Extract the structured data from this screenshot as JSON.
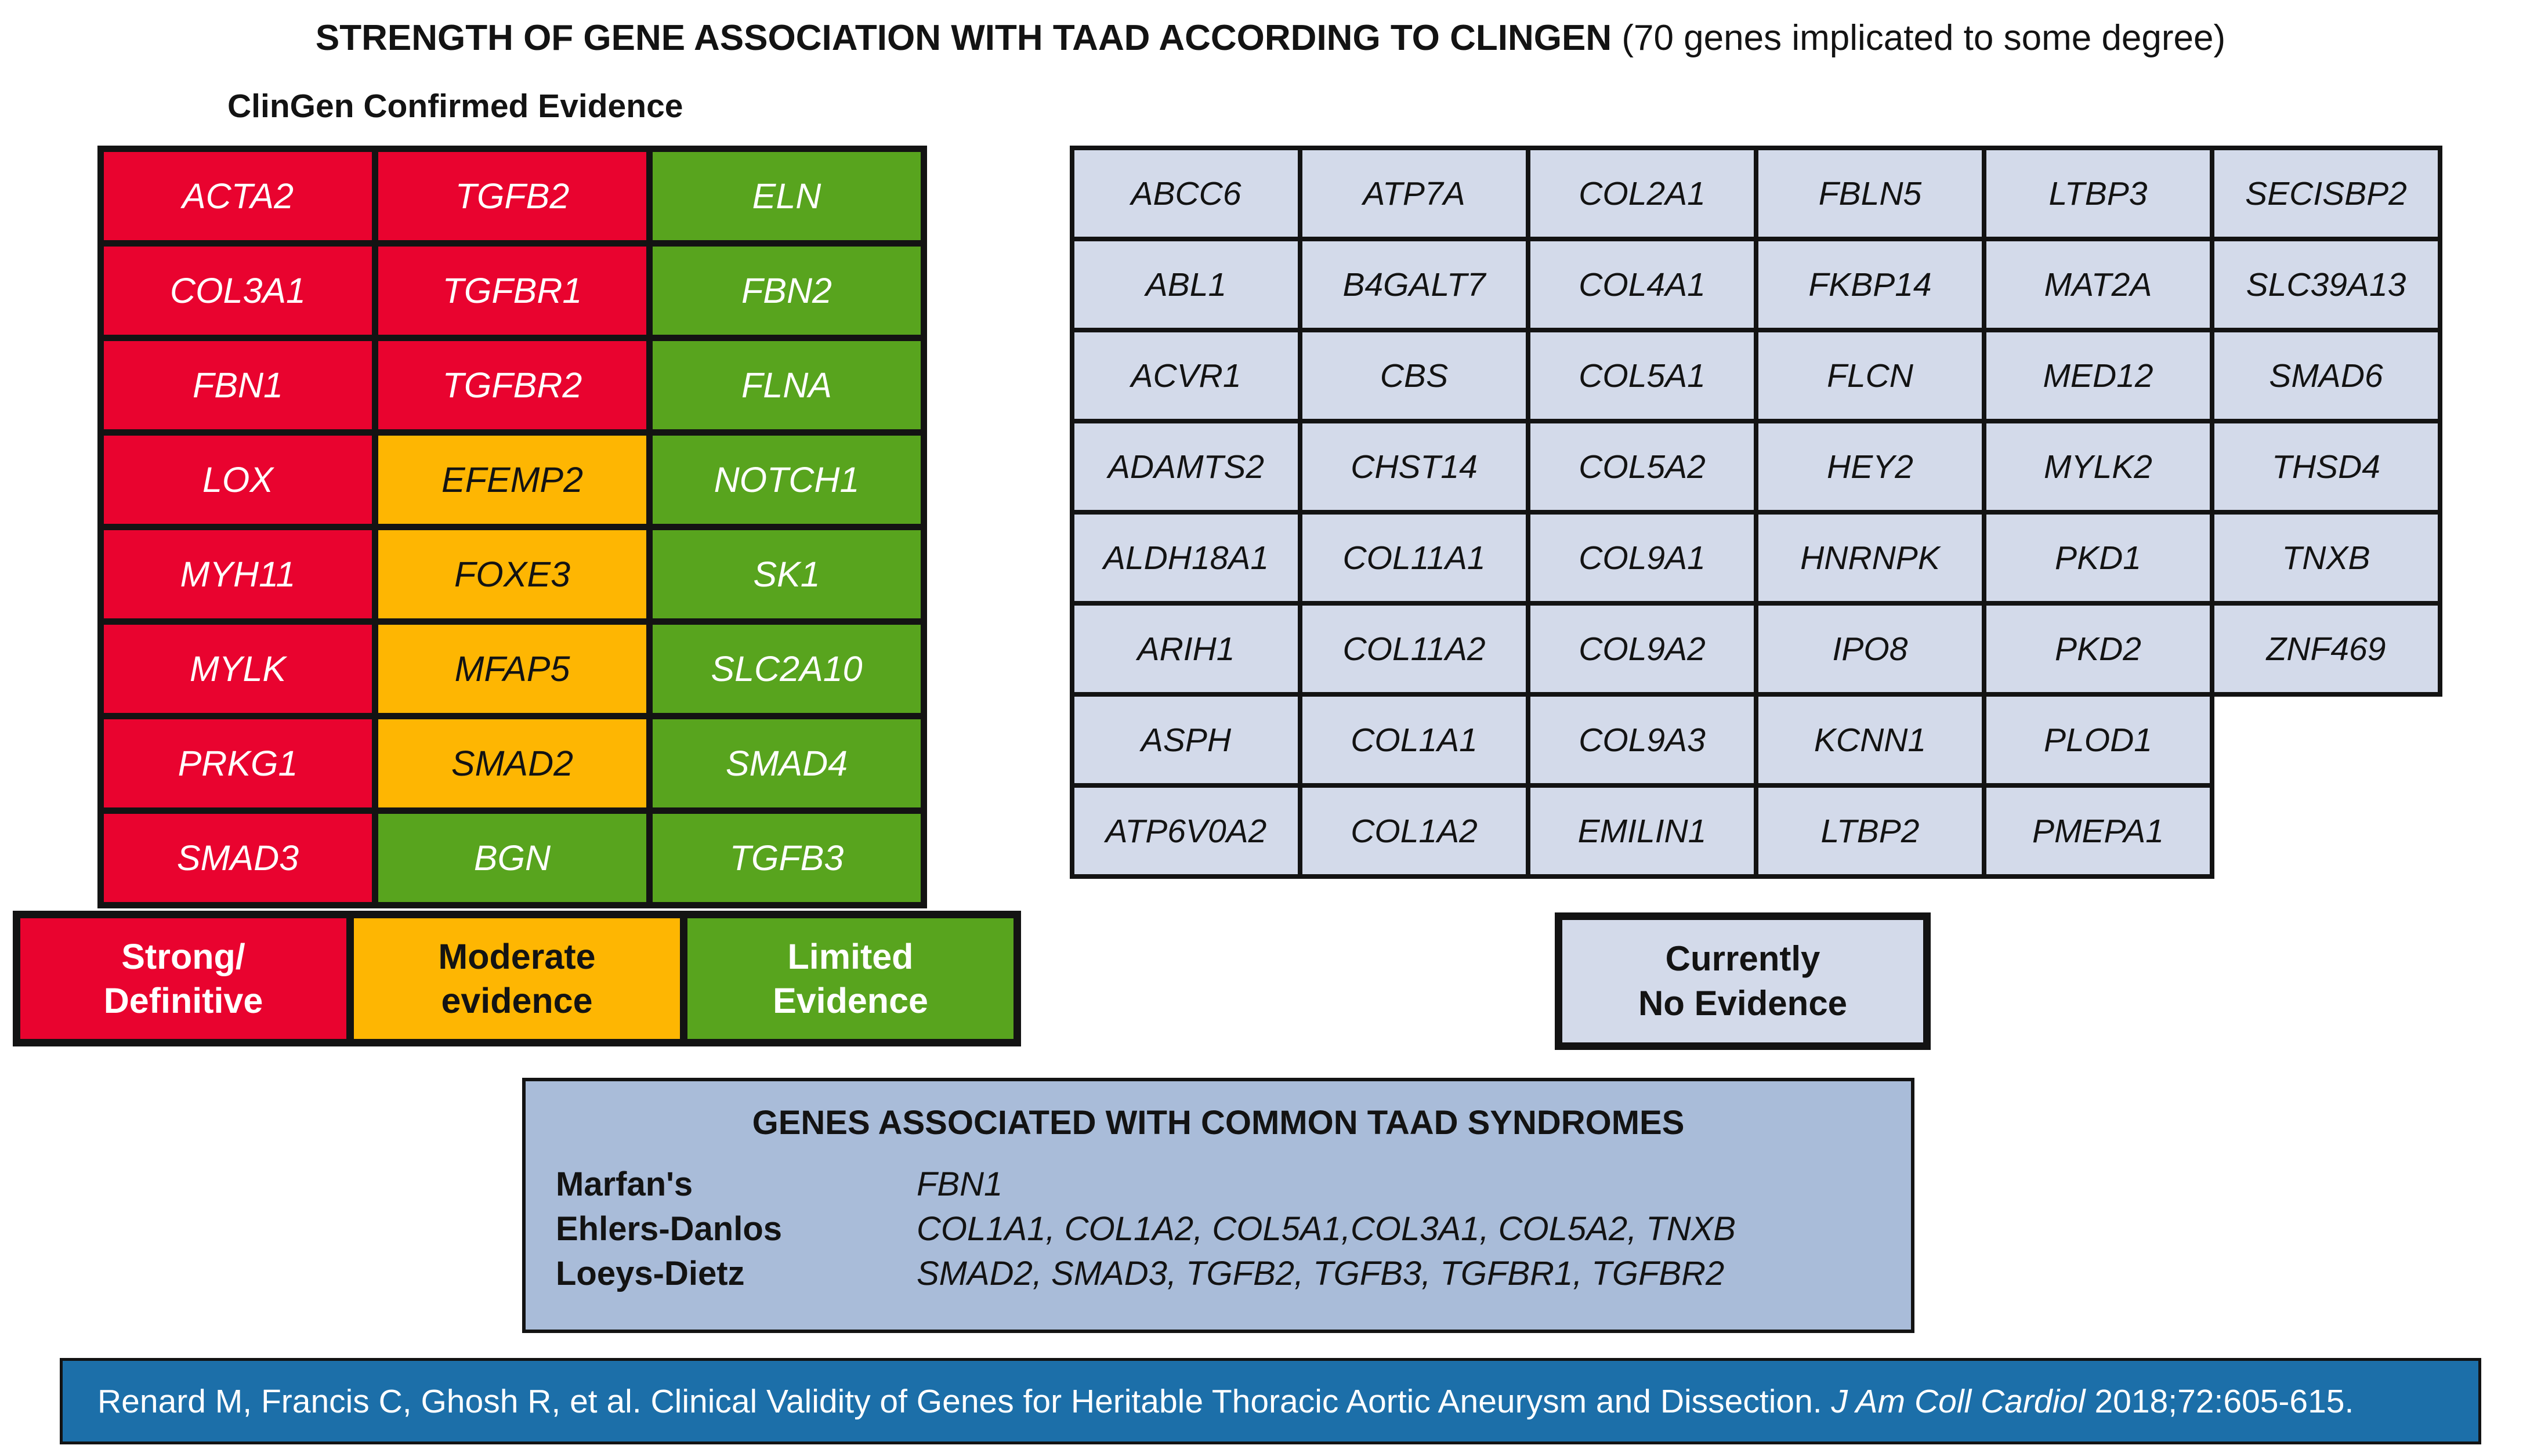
{
  "title": {
    "bold": "STRENGTH OF GENE ASSOCIATION WITH TAAD ACCORDING TO CLINGEN",
    "normal": " (70 genes implicated to some degree)"
  },
  "confirmed": {
    "heading": "ClinGen Confirmed Evidence",
    "rows": [
      [
        {
          "gene": "ACTA2",
          "level": "strong"
        },
        {
          "gene": "TGFB2",
          "level": "strong"
        },
        {
          "gene": "ELN",
          "level": "limited"
        }
      ],
      [
        {
          "gene": "COL3A1",
          "level": "strong"
        },
        {
          "gene": "TGFBR1",
          "level": "strong"
        },
        {
          "gene": "FBN2",
          "level": "limited"
        }
      ],
      [
        {
          "gene": "FBN1",
          "level": "strong"
        },
        {
          "gene": "TGFBR2",
          "level": "strong"
        },
        {
          "gene": "FLNA",
          "level": "limited"
        }
      ],
      [
        {
          "gene": "LOX",
          "level": "strong"
        },
        {
          "gene": "EFEMP2",
          "level": "moderate"
        },
        {
          "gene": "NOTCH1",
          "level": "limited"
        }
      ],
      [
        {
          "gene": "MYH11",
          "level": "strong"
        },
        {
          "gene": "FOXE3",
          "level": "moderate"
        },
        {
          "gene": "SK1",
          "level": "limited"
        }
      ],
      [
        {
          "gene": "MYLK",
          "level": "strong"
        },
        {
          "gene": "MFAP5",
          "level": "moderate"
        },
        {
          "gene": "SLC2A10",
          "level": "limited"
        }
      ],
      [
        {
          "gene": "PRKG1",
          "level": "strong"
        },
        {
          "gene": "SMAD2",
          "level": "moderate"
        },
        {
          "gene": "SMAD4",
          "level": "limited"
        }
      ],
      [
        {
          "gene": "SMAD3",
          "level": "strong"
        },
        {
          "gene": "BGN",
          "level": "limited"
        },
        {
          "gene": "TGFB3",
          "level": "limited"
        }
      ]
    ]
  },
  "legend": {
    "items": [
      {
        "line1": "Strong/",
        "line2": "Definitive",
        "level": "strong"
      },
      {
        "line1": "Moderate",
        "line2": "evidence",
        "level": "moderate"
      },
      {
        "line1": "Limited",
        "line2": "Evidence",
        "level": "limited"
      }
    ]
  },
  "no_evidence": {
    "rows": [
      [
        "ABCC6",
        "ATP7A",
        "COL2A1",
        "FBLN5",
        "LTBP3",
        "SECISBP2"
      ],
      [
        "ABL1",
        "B4GALT7",
        "COL4A1",
        "FKBP14",
        "MAT2A",
        "SLC39A13"
      ],
      [
        "ACVR1",
        "CBS",
        "COL5A1",
        "FLCN",
        "MED12",
        "SMAD6"
      ],
      [
        "ADAMTS2",
        "CHST14",
        "COL5A2",
        "HEY2",
        "MYLK2",
        "THSD4"
      ],
      [
        "ALDH18A1",
        "COL11A1",
        "COL9A1",
        "HNRNPK",
        "PKD1",
        "TNXB"
      ],
      [
        "ARIH1",
        "COL11A2",
        "COL9A2",
        "IPO8",
        "PKD2",
        "ZNF469"
      ],
      [
        "ASPH",
        "COL1A1",
        "COL9A3",
        "KCNN1",
        "PLOD1",
        null
      ],
      [
        "ATP6V0A2",
        "COL1A2",
        "EMILIN1",
        "LTBP2",
        "PMEPA1",
        null
      ]
    ],
    "box_line1": "Currently",
    "box_line2": "No Evidence"
  },
  "syndromes": {
    "title": "GENES ASSOCIATED WITH COMMON TAAD SYNDROMES",
    "rows": [
      {
        "name": "Marfan's",
        "genes": "FBN1"
      },
      {
        "name": "Ehlers-Danlos",
        "genes": "COL1A1, COL1A2, COL5A1,COL3A1, COL5A2, TNXB"
      },
      {
        "name": "Loeys-Dietz",
        "genes": "SMAD2, SMAD3, TGFB2, TGFB3, TGFBR1, TGFBR2"
      }
    ]
  },
  "footer": {
    "pre": "Renard M, Francis C, Ghosh R, et al. Clinical Validity of Genes for Heritable Thoracic Aortic Aneurysm and Dissection. ",
    "journal": "J Am Coll Cardiol",
    "post": " 2018;72:605-615."
  },
  "colors": {
    "strong": "#E9032F",
    "moderate": "#FEB602",
    "limited": "#58A41E",
    "none": "#D3DAEA",
    "syndrome": "#A9BCD9",
    "footer": "#1C6FA9"
  }
}
